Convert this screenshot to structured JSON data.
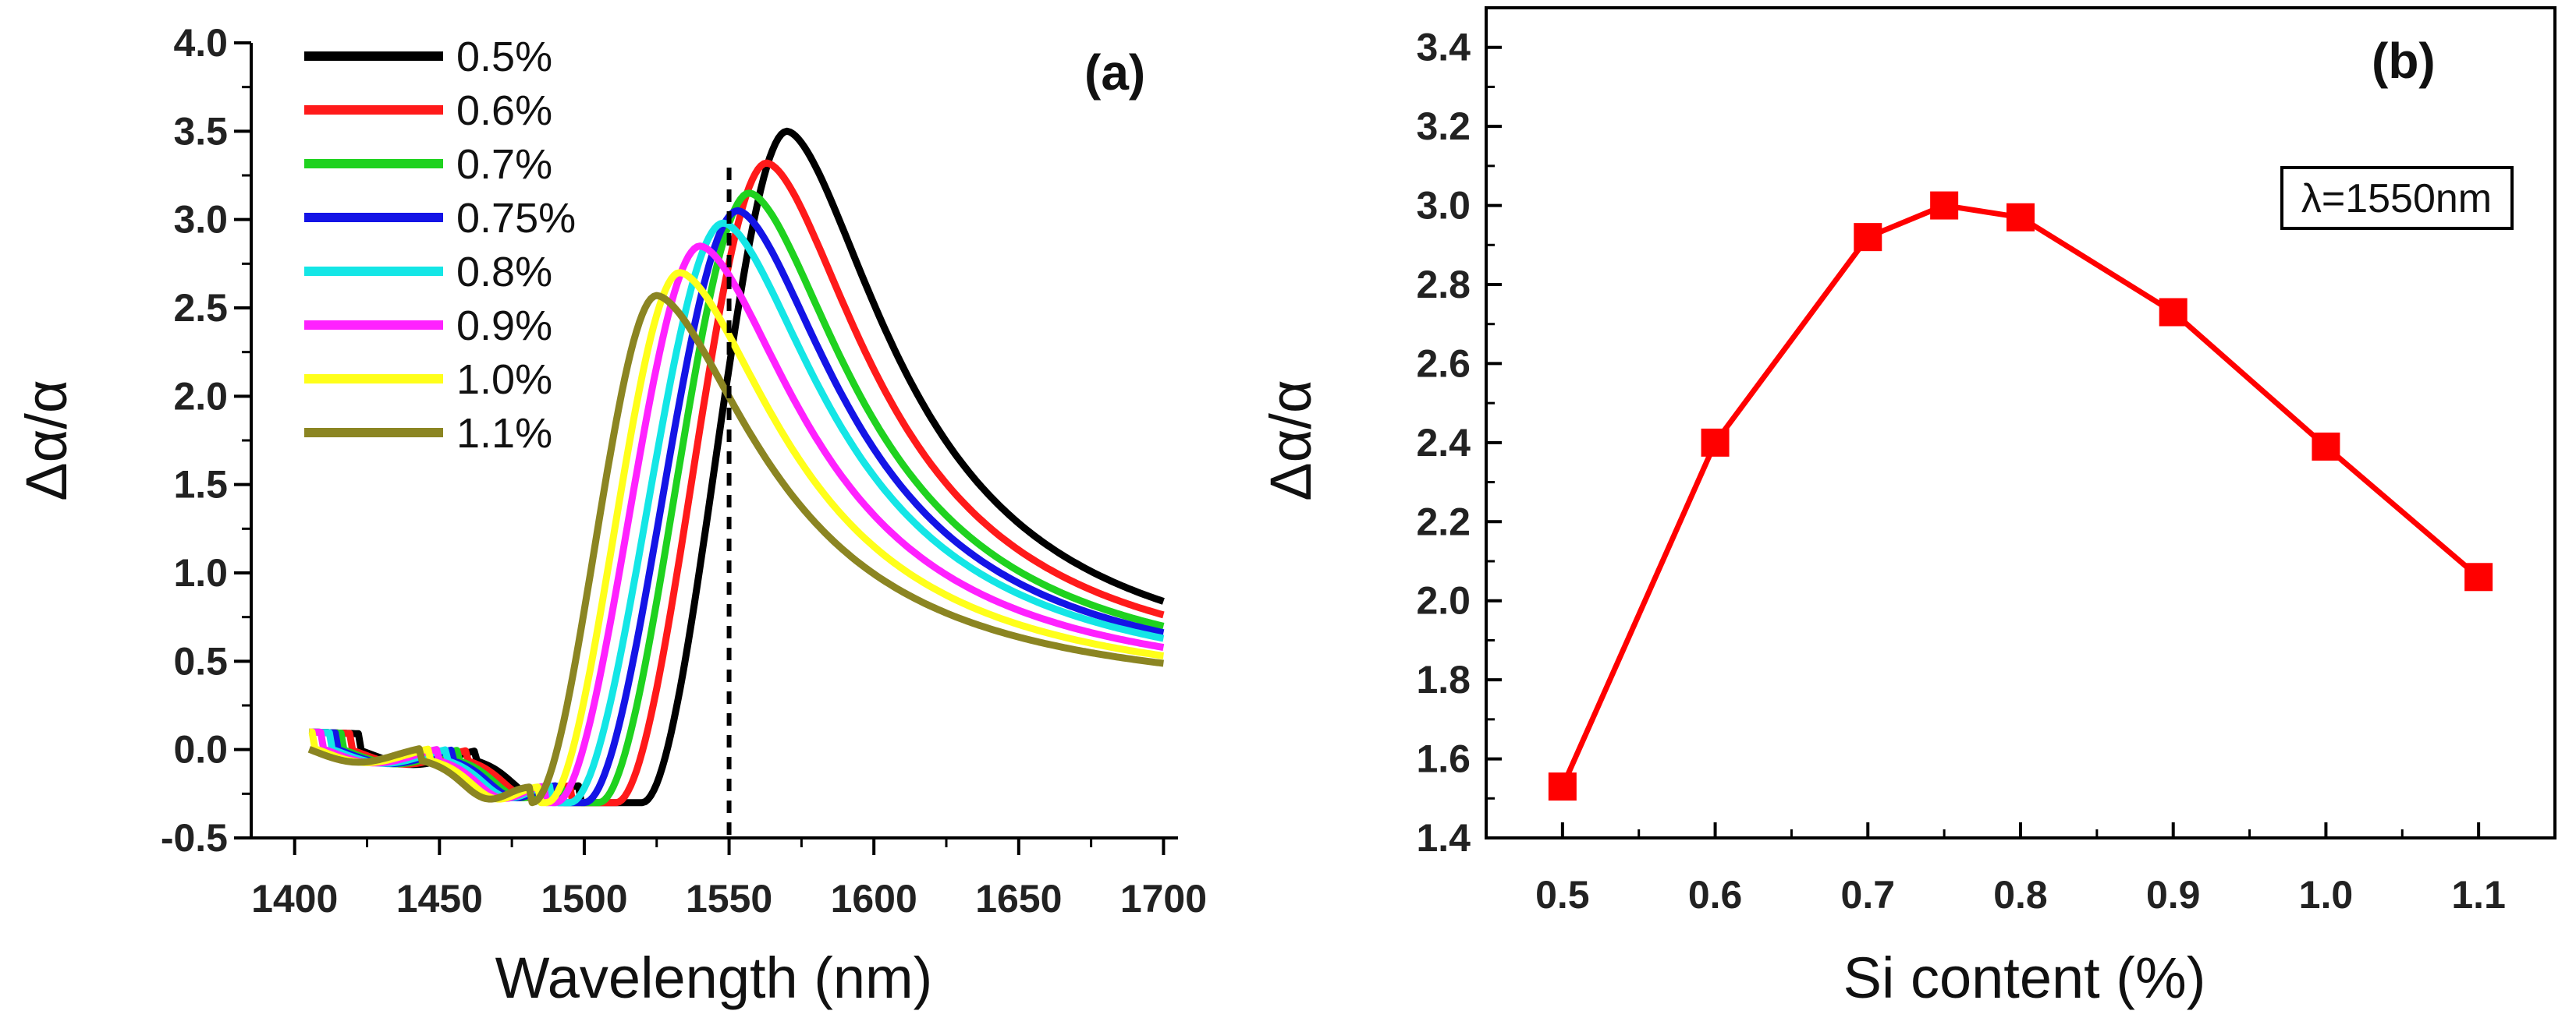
{
  "chart_data": [
    {
      "panel": "a",
      "type": "line",
      "panel_label": "(a)",
      "title": "",
      "xlabel": "Wavelength (nm)",
      "ylabel": "Δα/α",
      "xlim": [
        1385,
        1705
      ],
      "ylim": [
        -0.5,
        4.0
      ],
      "xticks": [
        1400,
        1450,
        1500,
        1550,
        1600,
        1650,
        1700
      ],
      "yticks": [
        -0.5,
        0.0,
        0.5,
        1.0,
        1.5,
        2.0,
        2.5,
        3.0,
        3.5,
        4.0
      ],
      "ytick_labels": [
        "-0.5",
        "0.0",
        "0.5",
        "1.0",
        "1.5",
        "2.0",
        "2.5",
        "3.0",
        "3.5",
        "4.0"
      ],
      "reference_line": {
        "x": 1550,
        "style": "dashed"
      },
      "legend_location": "top-left",
      "series": [
        {
          "name": "0.5%",
          "color": "#000000",
          "peak_x": 1570,
          "peak_y": 3.5,
          "min_x": 1520,
          "dip1_x": 1440,
          "dip2_x": 1483
        },
        {
          "name": "0.6%",
          "color": "#ff1a1a",
          "peak_x": 1563,
          "peak_y": 3.32,
          "min_x": 1511,
          "dip1_x": 1437,
          "dip2_x": 1480
        },
        {
          "name": "0.7%",
          "color": "#1fd21f",
          "peak_x": 1557,
          "peak_y": 3.15,
          "min_x": 1505,
          "dip1_x": 1434,
          "dip2_x": 1477
        },
        {
          "name": "0.75%",
          "color": "#1414e6",
          "peak_x": 1553,
          "peak_y": 3.05,
          "min_x": 1500,
          "dip1_x": 1432,
          "dip2_x": 1475
        },
        {
          "name": "0.8%",
          "color": "#14e6e6",
          "peak_x": 1548,
          "peak_y": 2.98,
          "min_x": 1495,
          "dip1_x": 1430,
          "dip2_x": 1473
        },
        {
          "name": "0.9%",
          "color": "#ff21ff",
          "peak_x": 1540,
          "peak_y": 2.85,
          "min_x": 1490,
          "dip1_x": 1427,
          "dip2_x": 1471
        },
        {
          "name": "1.0%",
          "color": "#ffff1a",
          "peak_x": 1533,
          "peak_y": 2.7,
          "min_x": 1487,
          "dip1_x": 1424,
          "dip2_x": 1469
        },
        {
          "name": "1.1%",
          "color": "#8b8522",
          "peak_x": 1525,
          "peak_y": 2.57,
          "min_x": 1482,
          "dip1_x": 1421,
          "dip2_x": 1466
        }
      ]
    },
    {
      "panel": "b",
      "type": "line",
      "panel_label": "(b)",
      "title": "",
      "xlabel": "Si content (%)",
      "ylabel": "Δα/α",
      "annotation": "λ=1550nm",
      "xlim": [
        0.45,
        1.15
      ],
      "ylim": [
        1.4,
        3.5
      ],
      "xticks": [
        0.5,
        0.6,
        0.7,
        0.8,
        0.9,
        1.0,
        1.1
      ],
      "xtick_labels": [
        "0.5",
        "0.6",
        "0.7",
        "0.8",
        "0.9",
        "1.0",
        "1.1"
      ],
      "yticks": [
        1.4,
        1.6,
        1.8,
        2.0,
        2.2,
        2.4,
        2.6,
        2.8,
        3.0,
        3.2,
        3.4
      ],
      "ytick_labels": [
        "1.4",
        "1.6",
        "1.8",
        "2.0",
        "2.2",
        "2.4",
        "2.6",
        "2.8",
        "3.0",
        "3.2",
        "3.4"
      ],
      "series": [
        {
          "name": "λ=1550nm",
          "color": "#ff0000",
          "x": [
            0.5,
            0.6,
            0.7,
            0.75,
            0.8,
            0.9,
            1.0,
            1.1
          ],
          "y": [
            1.53,
            2.4,
            2.92,
            3.0,
            2.97,
            2.73,
            2.39,
            2.06
          ]
        }
      ]
    }
  ]
}
